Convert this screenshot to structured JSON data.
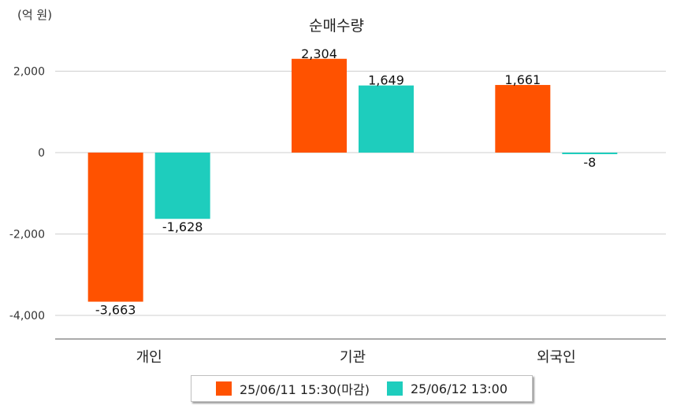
{
  "unit_label": "(억 원)",
  "colors": {
    "series1": "#ff5200",
    "series2": "#1ecdbd"
  },
  "chart_data": {
    "type": "bar",
    "title": "순매수량",
    "unit": "(억 원)",
    "categories": [
      "개인",
      "기관",
      "외국인"
    ],
    "series": [
      {
        "name": "25/06/11 15:30(마감)",
        "values": [
          -3663,
          2304,
          1661
        ],
        "labels": [
          "-3,663",
          "2,304",
          "1,661"
        ]
      },
      {
        "name": "25/06/12 13:00",
        "values": [
          -1628,
          1649,
          -8
        ],
        "labels": [
          "-1,628",
          "1,649",
          "-8"
        ]
      }
    ],
    "yticks": [
      2000,
      0,
      -2000,
      -4000
    ],
    "ytick_labels": [
      "2,000",
      "0",
      "-2,000",
      "-4,000"
    ],
    "ylim": [
      -4600,
      2000
    ],
    "grid": true,
    "legend_position": "bottom"
  }
}
